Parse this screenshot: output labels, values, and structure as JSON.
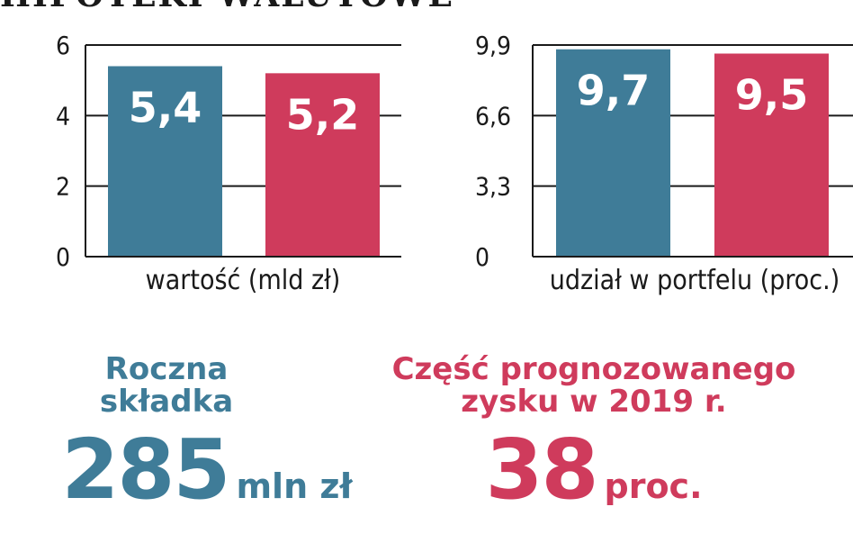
{
  "header": {
    "title": "HIPOTEKI WALUTOWE"
  },
  "colors": {
    "blue": "#3f7c98",
    "red": "#cf3b5c",
    "axis": "#1a1a1a"
  },
  "chart_data": [
    {
      "type": "bar",
      "categories": [
        "",
        ""
      ],
      "values": [
        5.4,
        5.2
      ],
      "value_labels": [
        "5,4",
        "5,2"
      ],
      "bar_colors": [
        "#3f7c98",
        "#cf3b5c"
      ],
      "yticks": [
        0,
        2,
        4,
        6
      ],
      "ytick_labels": [
        "0",
        "2",
        "4",
        "6"
      ],
      "ylim": [
        0,
        6
      ],
      "xlabel": "wartość (mld zł)",
      "ylabel": "",
      "title": "",
      "grid": true
    },
    {
      "type": "bar",
      "categories": [
        "",
        ""
      ],
      "values": [
        9.7,
        9.5
      ],
      "value_labels": [
        "9,7",
        "9,5"
      ],
      "bar_colors": [
        "#3f7c98",
        "#cf3b5c"
      ],
      "yticks": [
        0,
        3.3,
        6.6,
        9.9
      ],
      "ytick_labels": [
        "0",
        "3,3",
        "6,6",
        "9,9"
      ],
      "ylim": [
        0,
        9.9
      ],
      "xlabel": "udział w portfelu (proc.)",
      "ylabel": "",
      "title": "",
      "grid": true
    }
  ],
  "stats": {
    "left": {
      "title": "Roczna\nskładka",
      "value": "285",
      "unit": "mln zł",
      "color": "#3f7c98"
    },
    "right": {
      "title": "Część prognozowanego\nzysku w 2019 r.",
      "value": "38",
      "unit": "proc.",
      "color": "#cf3b5c"
    }
  }
}
